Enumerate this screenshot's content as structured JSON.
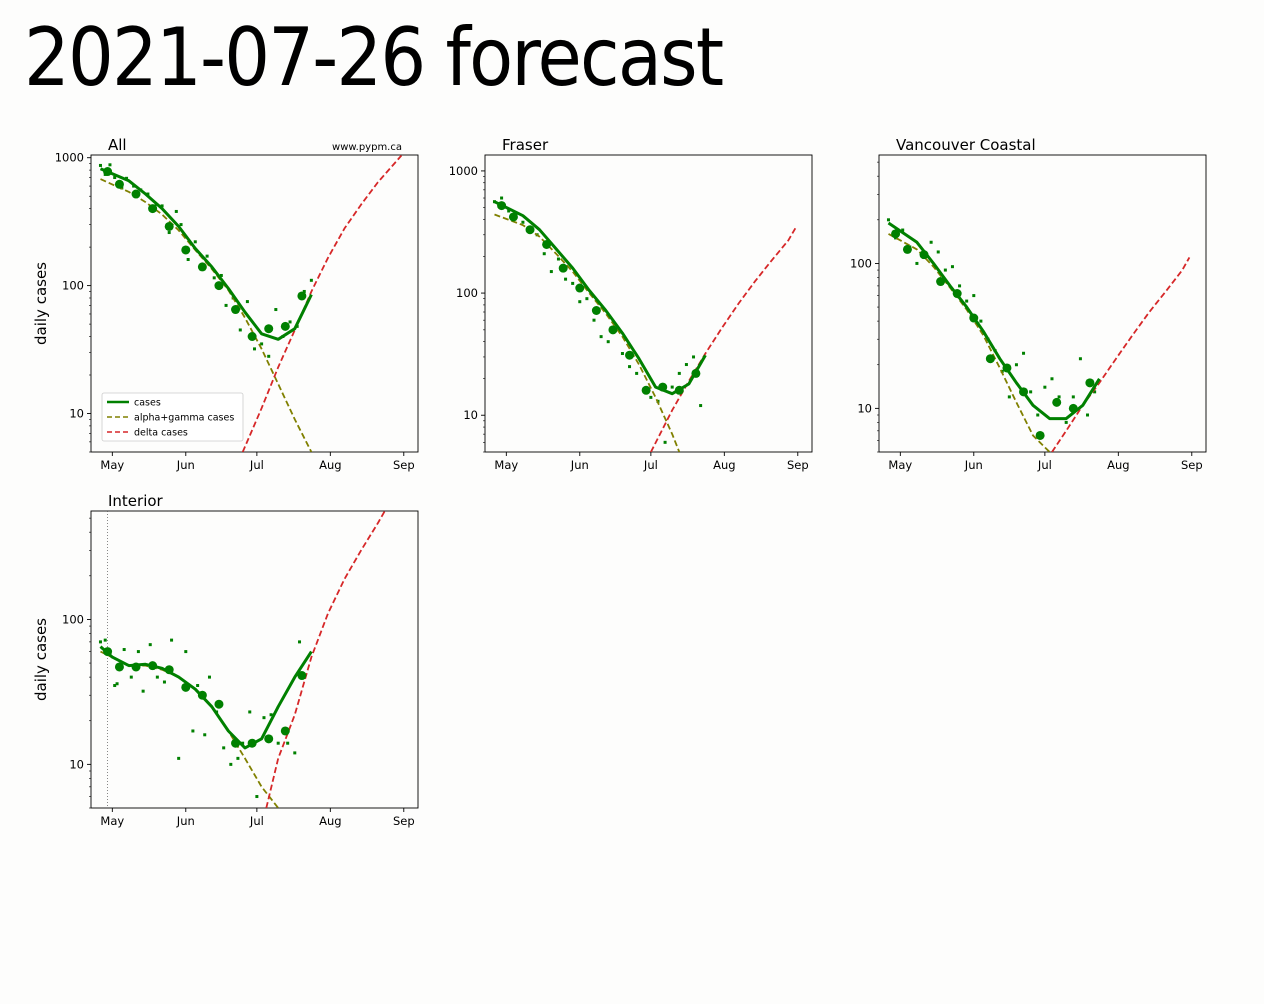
{
  "page": {
    "title": "2021-07-26 forecast"
  },
  "chart_data": [
    {
      "type": "line",
      "title": "All",
      "watermark": "www.pypm.ca",
      "ylabel": "daily cases",
      "yscale": "log",
      "ylim": [
        5,
        1050
      ],
      "yticks": [
        10,
        100,
        1000
      ],
      "ytick_labels": [
        "10",
        "100",
        "1000"
      ],
      "xticks": [
        "May",
        "Jun",
        "Jul",
        "Aug",
        "Sep"
      ],
      "xrange_days": [
        -9,
        129
      ],
      "legend": {
        "placement": "lower-left",
        "entries": [
          {
            "label": "cases",
            "color": "#008000",
            "style": "solid"
          },
          {
            "label": "alpha+gamma cases",
            "color": "#808000",
            "style": "dashed"
          },
          {
            "label": "delta cases",
            "color": "#d62728",
            "style": "dashed"
          }
        ]
      },
      "series": [
        {
          "name": "cases",
          "color": "#008000",
          "style": "solid",
          "x": [
            -5,
            7,
            14,
            21,
            28,
            35,
            42,
            49,
            56,
            63,
            70,
            77,
            84
          ],
          "y": [
            820,
            660,
            520,
            400,
            290,
            195,
            140,
            95,
            62,
            42,
            38,
            46,
            85
          ]
        },
        {
          "name": "alpha+gamma cases",
          "color": "#808000",
          "style": "dashed",
          "x": [
            -5,
            7,
            14,
            21,
            28,
            35,
            42,
            49,
            56,
            63,
            70,
            77,
            84
          ],
          "y": [
            680,
            540,
            450,
            360,
            270,
            190,
            135,
            92,
            56,
            32,
            17,
            9,
            5
          ]
        },
        {
          "name": "delta cases",
          "color": "#d62728",
          "style": "dashed",
          "x": [
            55,
            63,
            70,
            77,
            84,
            91,
            98,
            105,
            112,
            119,
            122
          ],
          "y": [
            5,
            11,
            23,
            45,
            90,
            165,
            280,
            430,
            640,
            900,
            1040
          ]
        }
      ],
      "weekly_points": {
        "color": "#008000",
        "x": [
          -2,
          3,
          10,
          17,
          24,
          31,
          38,
          45,
          52,
          59,
          66,
          73,
          80
        ],
        "y": [
          780,
          620,
          520,
          400,
          290,
          190,
          140,
          100,
          65,
          40,
          46,
          48,
          83
        ]
      },
      "daily_points": {
        "color": "#008000",
        "x": [
          -5,
          -3,
          -1,
          1,
          4,
          6,
          9,
          12,
          15,
          18,
          21,
          24,
          27,
          29,
          32,
          35,
          38,
          40,
          43,
          46,
          48,
          51,
          54,
          57,
          60,
          63,
          66,
          69,
          72,
          75,
          78,
          81,
          84
        ],
        "y": [
          870,
          740,
          880,
          700,
          580,
          690,
          600,
          560,
          520,
          420,
          420,
          260,
          380,
          300,
          160,
          220,
          140,
          170,
          115,
          120,
          70,
          80,
          45,
          75,
          32,
          35,
          28,
          65,
          40,
          52,
          48,
          90,
          110
        ]
      }
    },
    {
      "type": "line",
      "title": "Fraser",
      "ylabel": "",
      "yscale": "log",
      "ylim": [
        5,
        1350
      ],
      "yticks": [
        10,
        100,
        1000
      ],
      "ytick_labels": [
        "10",
        "100",
        "1000"
      ],
      "xticks": [
        "May",
        "Jun",
        "Jul",
        "Aug",
        "Sep"
      ],
      "xrange_days": [
        -9,
        129
      ],
      "series": [
        {
          "name": "cases",
          "color": "#008000",
          "style": "solid",
          "x": [
            -5,
            7,
            14,
            21,
            28,
            35,
            42,
            49,
            56,
            63,
            70,
            77,
            84
          ],
          "y": [
            560,
            430,
            330,
            230,
            160,
            105,
            72,
            47,
            29,
            17,
            15,
            18,
            31
          ]
        },
        {
          "name": "alpha+gamma cases",
          "color": "#808000",
          "style": "dashed",
          "x": [
            -5,
            7,
            14,
            21,
            28,
            35,
            42,
            49,
            56,
            63,
            70,
            73
          ],
          "y": [
            440,
            360,
            290,
            210,
            150,
            100,
            68,
            44,
            26,
            14,
            7,
            5
          ]
        },
        {
          "name": "delta cases",
          "color": "#d62728",
          "style": "dashed",
          "x": [
            61,
            70,
            77,
            84,
            91,
            98,
            105,
            112,
            119,
            122
          ],
          "y": [
            5,
            11,
            19,
            32,
            52,
            82,
            125,
            185,
            270,
            340
          ]
        }
      ],
      "weekly_points": {
        "color": "#008000",
        "x": [
          -2,
          3,
          10,
          17,
          24,
          31,
          38,
          45,
          52,
          59,
          66,
          73,
          80
        ],
        "y": [
          520,
          420,
          330,
          250,
          160,
          110,
          72,
          50,
          31,
          16,
          17,
          16,
          22
        ]
      },
      "daily_points": {
        "color": "#008000",
        "x": [
          -5,
          -2,
          1,
          4,
          7,
          10,
          13,
          16,
          19,
          22,
          25,
          28,
          31,
          34,
          37,
          40,
          43,
          46,
          49,
          52,
          55,
          58,
          61,
          64,
          67,
          70,
          73,
          76,
          79,
          82
        ],
        "y": [
          560,
          600,
          470,
          440,
          380,
          330,
          300,
          210,
          150,
          190,
          130,
          120,
          85,
          90,
          60,
          44,
          40,
          50,
          32,
          25,
          22,
          16,
          14,
          13,
          6,
          17,
          22,
          26,
          30,
          12
        ]
      }
    },
    {
      "type": "line",
      "title": "Vancouver Coastal",
      "ylabel": "",
      "yscale": "log",
      "ylim": [
        5,
        560
      ],
      "yticks": [
        10,
        100
      ],
      "ytick_labels": [
        "10",
        "100"
      ],
      "xticks": [
        "May",
        "Jun",
        "Jul",
        "Aug",
        "Sep"
      ],
      "xrange_days": [
        -9,
        129
      ],
      "series": [
        {
          "name": "cases",
          "color": "#008000",
          "style": "solid",
          "x": [
            -5,
            7,
            14,
            21,
            28,
            35,
            42,
            49,
            56,
            63,
            70,
            77,
            84
          ],
          "y": [
            190,
            140,
            100,
            70,
            50,
            34,
            22,
            15,
            10.5,
            8.5,
            8.5,
            10.5,
            16
          ]
        },
        {
          "name": "alpha+gamma cases",
          "color": "#808000",
          "style": "dashed",
          "x": [
            -5,
            7,
            14,
            21,
            28,
            35,
            42,
            49,
            56,
            63
          ],
          "y": [
            160,
            125,
            95,
            68,
            48,
            32,
            19,
            11,
            6.5,
            5
          ]
        },
        {
          "name": "delta cases",
          "color": "#d62728",
          "style": "dashed",
          "x": [
            64,
            70,
            77,
            84,
            91,
            98,
            105,
            112,
            119,
            122
          ],
          "y": [
            5,
            7,
            10.5,
            15,
            22,
            32,
            46,
            64,
            90,
            110
          ]
        }
      ],
      "weekly_points": {
        "color": "#008000",
        "x": [
          -2,
          3,
          10,
          17,
          24,
          31,
          38,
          45,
          52,
          59,
          66,
          73,
          80
        ],
        "y": [
          160,
          125,
          115,
          75,
          62,
          42,
          22,
          19,
          13,
          6.5,
          11,
          10,
          15
        ]
      },
      "daily_points": {
        "color": "#008000",
        "x": [
          -5,
          -2,
          1,
          4,
          7,
          10,
          13,
          16,
          19,
          22,
          25,
          28,
          31,
          34,
          37,
          40,
          43,
          46,
          49,
          52,
          55,
          58,
          61,
          64,
          67,
          70,
          73,
          76,
          79,
          82
        ],
        "y": [
          200,
          150,
          170,
          130,
          100,
          110,
          140,
          120,
          90,
          95,
          70,
          55,
          60,
          40,
          30,
          25,
          18,
          12,
          20,
          24,
          13,
          9,
          14,
          16,
          12,
          8,
          12,
          22,
          9,
          13
        ]
      }
    },
    {
      "type": "line",
      "title": "Interior",
      "ylabel": "daily cases",
      "yscale": "log",
      "ylim": [
        5,
        560
      ],
      "yticks": [
        10,
        100
      ],
      "ytick_labels": [
        "10",
        "100"
      ],
      "xticks": [
        "May",
        "Jun",
        "Jul",
        "Aug",
        "Sep"
      ],
      "xrange_days": [
        -9,
        129
      ],
      "reference_line_day": -2,
      "series": [
        {
          "name": "cases",
          "color": "#008000",
          "style": "solid",
          "x": [
            -5,
            0,
            7,
            14,
            21,
            28,
            35,
            42,
            49,
            56,
            63,
            70,
            77,
            84
          ],
          "y": [
            65,
            55,
            48,
            49,
            46,
            40,
            33,
            25,
            17,
            13,
            15,
            25,
            40,
            60
          ]
        },
        {
          "name": "alpha+gamma cases",
          "color": "#808000",
          "style": "dashed",
          "x": [
            -5,
            7,
            14,
            21,
            28,
            35,
            42,
            49,
            56,
            63,
            70
          ],
          "y": [
            60,
            48,
            48,
            45,
            40,
            33,
            25,
            17,
            11,
            7,
            5
          ]
        },
        {
          "name": "delta cases",
          "color": "#d62728",
          "style": "dashed",
          "x": [
            65,
            70,
            77,
            84,
            91,
            98,
            105,
            112,
            115
          ],
          "y": [
            5,
            11,
            22,
            55,
            110,
            190,
            300,
            460,
            560
          ]
        }
      ],
      "weekly_points": {
        "color": "#008000",
        "x": [
          -2,
          3,
          10,
          17,
          24,
          31,
          38,
          45,
          52,
          59,
          66,
          73,
          80
        ],
        "y": [
          60,
          47,
          47,
          48,
          45,
          34,
          30,
          26,
          14,
          14,
          15,
          17,
          41
        ]
      },
      "daily_points": {
        "color": "#008000",
        "x": [
          -5,
          -3,
          1,
          2,
          5,
          8,
          11,
          13,
          16,
          19,
          22,
          25,
          28,
          31,
          34,
          36,
          39,
          41,
          44,
          47,
          50,
          53,
          55,
          58,
          61,
          64,
          67,
          70,
          74,
          77,
          79
        ],
        "y": [
          70,
          72,
          35,
          36,
          62,
          40,
          60,
          32,
          67,
          40,
          37,
          72,
          11,
          60,
          17,
          35,
          16,
          40,
          23,
          13,
          10,
          11,
          14,
          23,
          6,
          21,
          22,
          14,
          14,
          12,
          70
        ]
      }
    }
  ]
}
